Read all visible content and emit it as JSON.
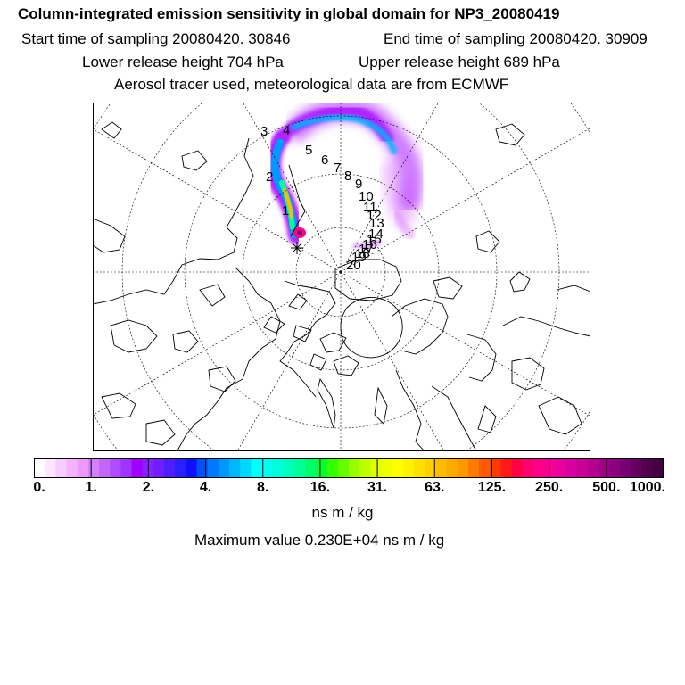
{
  "header": {
    "title": "Column-integrated emission sensitivity in global domain for NP3_20080419",
    "start_time": "Start time of sampling 20080420. 30846",
    "end_time": "End time of sampling 20080420. 30909",
    "lower_height": "Lower release height  704 hPa",
    "upper_height": "Upper release height  689 hPa",
    "tracer_info": "Aerosol tracer used, meteorological data are from ECMWF"
  },
  "map": {
    "projection": "north-polar-stereographic",
    "graticule": "dashed",
    "release_marker": "star",
    "trajectory_labels": [
      "1",
      "2",
      "3",
      "4",
      "5",
      "6",
      "7",
      "8",
      "9",
      "10",
      "11",
      "12",
      "13",
      "14",
      "15",
      "16",
      "17",
      "18",
      "19",
      "20"
    ]
  },
  "colorbar": {
    "ticks": [
      "0.",
      "1.",
      "2.",
      "4.",
      "8.",
      "16.",
      "31.",
      "63.",
      "125.",
      "250.",
      "500.",
      "1000."
    ],
    "colors": [
      "#ffffff",
      "#fde6ff",
      "#f9ccff",
      "#f5b3ff",
      "#ef99ff",
      "#d580ff",
      "#c266ff",
      "#b04dff",
      "#9f33ff",
      "#a000ff",
      "#8a1fff",
      "#6f1fff",
      "#4d1fff",
      "#2a1fff",
      "#1010ff",
      "#0050ff",
      "#0078ff",
      "#0098ff",
      "#00b8ff",
      "#00d8ff",
      "#00ffff",
      "#00ffee",
      "#00ffd8",
      "#00ffbb",
      "#00ff99",
      "#00ff66",
      "#00ff33",
      "#33ff00",
      "#66ff00",
      "#99ff00",
      "#bbff00",
      "#ddff00",
      "#eeff00",
      "#ffff00",
      "#fff200",
      "#ffe000",
      "#ffd000",
      "#ffbb00",
      "#ffaa00",
      "#ff9900",
      "#ff7a00",
      "#ff5a00",
      "#ff3a00",
      "#ff1a1a",
      "#ff0044",
      "#ff0070",
      "#ff0088",
      "#f50090",
      "#e8009a",
      "#d800a0",
      "#c80098",
      "#b40090",
      "#a00088",
      "#8a0080",
      "#760070",
      "#62005e",
      "#52004e",
      "#420040"
    ],
    "units": "ns m / kg"
  },
  "max_value": "Maximum value  0.230E+04 ns m / kg"
}
